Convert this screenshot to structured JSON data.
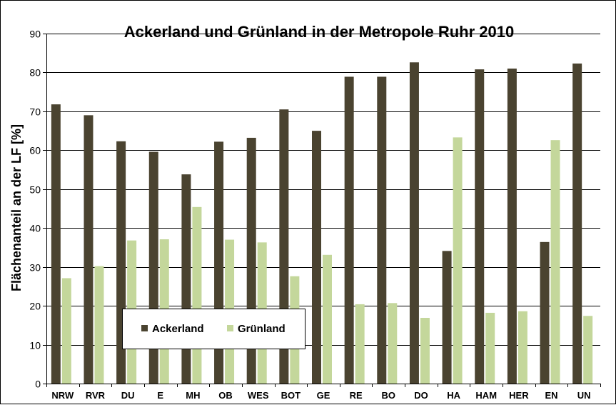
{
  "chart_data": {
    "type": "bar",
    "title": "Ackerland und Grünland in der Metropole Ruhr 2010",
    "xlabel": "",
    "ylabel": "Flächenanteil an der LF [%]",
    "ylim": [
      0,
      90
    ],
    "yticks": [
      0,
      10,
      20,
      30,
      40,
      50,
      60,
      70,
      80,
      90
    ],
    "grid": true,
    "legend_position": "lower-left inside plot",
    "categories": [
      "NRW",
      "RVR",
      "DU",
      "E",
      "MH",
      "OB",
      "WES",
      "BOT",
      "GE",
      "RE",
      "BO",
      "DO",
      "HA",
      "HAM",
      "HER",
      "EN",
      "UN"
    ],
    "series": [
      {
        "name": "Ackerland",
        "color": "#4a4330",
        "values": [
          71.8,
          69.0,
          62.3,
          59.6,
          53.8,
          62.2,
          63.2,
          70.5,
          65.0,
          78.9,
          78.9,
          82.6,
          34.1,
          80.8,
          81.0,
          36.4,
          82.3
        ]
      },
      {
        "name": "Grünland",
        "color": "#c4d79b",
        "values": [
          27.1,
          30.2,
          36.8,
          37.1,
          45.4,
          37.0,
          36.3,
          27.6,
          33.1,
          20.4,
          20.7,
          16.9,
          63.3,
          18.2,
          18.6,
          62.6,
          17.4
        ]
      }
    ]
  }
}
